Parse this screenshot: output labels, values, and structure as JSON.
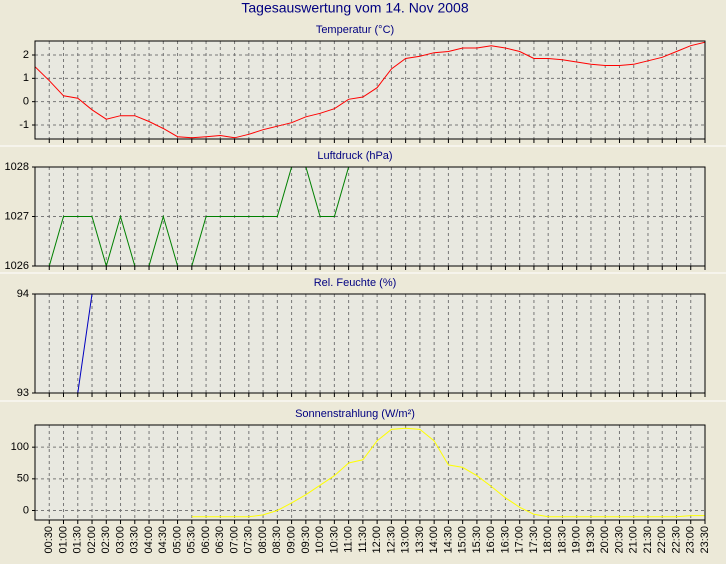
{
  "title": "Tagesauswertung vom 14. Nov 2008",
  "chart_data": [
    {
      "type": "line",
      "title": "Temperatur (°C)",
      "color": "#ff0000",
      "ylim": [
        -1.6,
        2.6
      ],
      "yticks": [
        -1,
        0,
        1,
        2
      ],
      "grid": true,
      "values": [
        1.5,
        0.9,
        0.25,
        0.15,
        -0.35,
        -0.75,
        -0.6,
        -0.6,
        -0.85,
        -1.15,
        -1.5,
        -1.55,
        -1.5,
        -1.45,
        -1.55,
        -1.4,
        -1.2,
        -1.05,
        -0.9,
        -0.65,
        -0.5,
        -0.3,
        0.1,
        0.2,
        0.6,
        1.4,
        1.85,
        1.95,
        2.1,
        2.15,
        2.3,
        2.3,
        2.4,
        2.3,
        2.15,
        1.85,
        1.85,
        1.8,
        1.7,
        1.6,
        1.55,
        1.55,
        1.6,
        1.75,
        1.9,
        2.15,
        2.4,
        2.55
      ]
    },
    {
      "type": "line",
      "title": "Luftdruck (hPa)",
      "color": "#008000",
      "ylim": [
        1026,
        1028
      ],
      "yticks": [
        1026,
        1027,
        1028
      ],
      "grid": true,
      "values": [
        1026,
        1026,
        1027,
        1027,
        1027,
        1026,
        1027,
        1026,
        1026,
        1027,
        1026,
        1026,
        1027,
        1027,
        1027,
        1027,
        1027,
        1027,
        1028,
        1028,
        1027,
        1027,
        1028,
        null,
        null,
        null,
        null,
        null,
        null,
        null,
        null,
        null,
        null,
        null,
        null,
        null,
        null,
        null,
        null,
        null,
        null,
        null,
        null,
        null,
        null,
        null,
        null,
        null
      ]
    },
    {
      "type": "line",
      "title": "Rel. Feuchte (%)",
      "color": "#0000c0",
      "ylim": [
        93,
        94
      ],
      "yticks": [
        93,
        94
      ],
      "grid": true,
      "values": [
        93,
        93,
        93,
        93,
        94,
        null,
        null,
        null,
        null,
        null,
        null,
        null,
        null,
        null,
        null,
        null,
        null,
        null,
        null,
        null,
        null,
        null,
        null,
        null,
        null,
        null,
        null,
        null,
        null,
        null,
        null,
        null,
        null,
        null,
        null,
        null,
        null,
        null,
        null,
        null,
        null,
        null,
        null,
        null,
        null,
        null,
        null,
        null
      ]
    },
    {
      "type": "line",
      "title": "Sonnenstrahlung (W/m²)",
      "color": "#ffff00",
      "ylim": [
        -15,
        135
      ],
      "yticks": [
        0,
        50,
        100
      ],
      "grid": true,
      "categories": [
        null,
        "00:30",
        "01:00",
        "01:30",
        "02:00",
        "02:30",
        "03:00",
        "03:30",
        "04:00",
        "04:30",
        "05:00",
        "05:30",
        "06:00",
        "06:30",
        "07:00",
        "07:30",
        "08:00",
        "08:30",
        "09:00",
        "09:30",
        "10:00",
        "10:30",
        "11:00",
        "11:30",
        "12:00",
        "12:30",
        "13:00",
        "13:30",
        "14:00",
        "14:30",
        "15:00",
        "15:30",
        "16:00",
        "16:30",
        "17:00",
        "17:30",
        "18:00",
        "18:30",
        "19:00",
        "19:30",
        "20:00",
        "20:30",
        "21:00",
        "21:30",
        "22:00",
        "22:30",
        "23:00",
        "23:30"
      ],
      "values": [
        null,
        null,
        null,
        null,
        null,
        null,
        null,
        null,
        null,
        null,
        null,
        -10,
        -10,
        -10,
        -10,
        -10,
        -7,
        0,
        12,
        25,
        40,
        55,
        75,
        80,
        110,
        128,
        130,
        128,
        110,
        72,
        68,
        55,
        38,
        20,
        5,
        -6,
        -10,
        -10,
        -10,
        -10,
        -10,
        -10,
        -10,
        -10,
        -10,
        -10,
        -8,
        -8
      ]
    }
  ]
}
